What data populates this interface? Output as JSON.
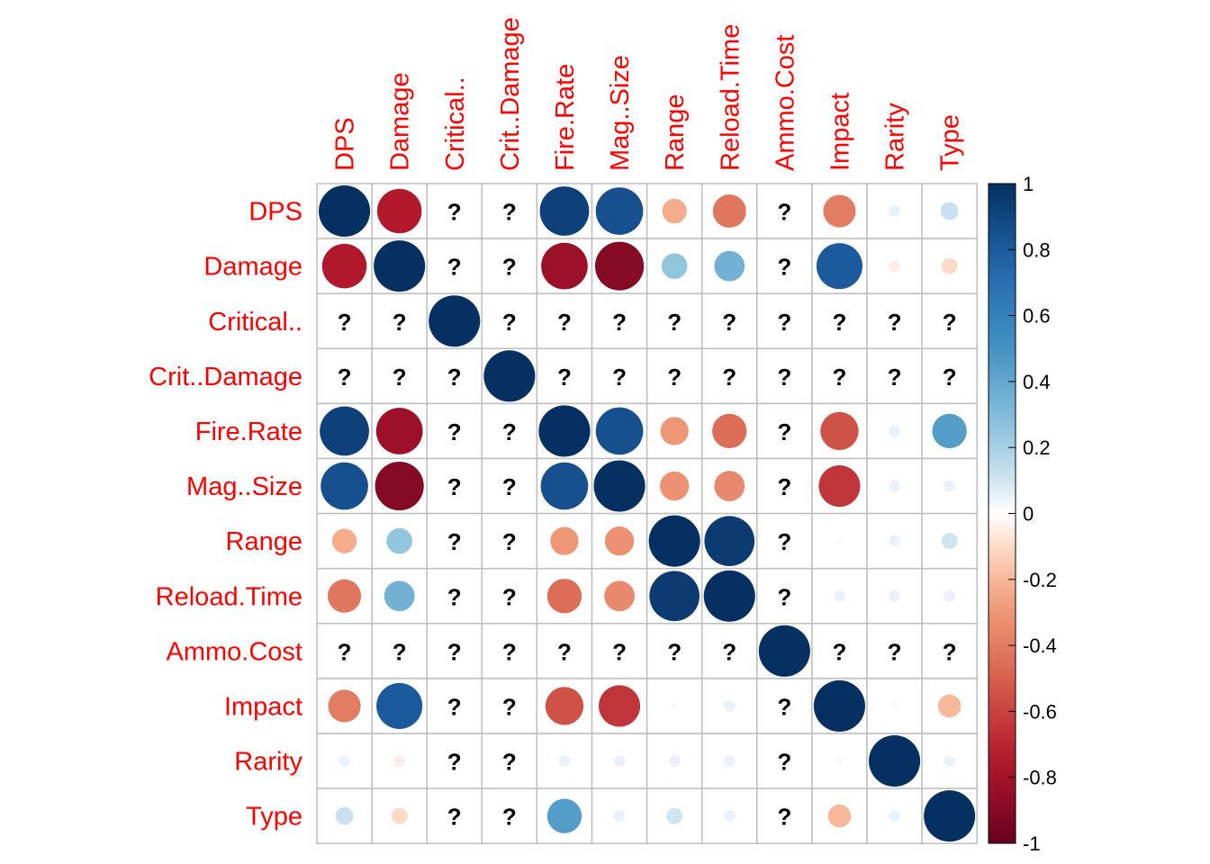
{
  "chart_data": {
    "type": "heatmap",
    "variables": [
      "DPS",
      "Damage",
      "Critical..",
      "Crit..Damage",
      "Fire.Rate",
      "Mag..Size",
      "Range",
      "Reload.Time",
      "Ammo.Cost",
      "Impact",
      "Rarity",
      "Type"
    ],
    "missing_symbol": "?",
    "matrix": [
      [
        1,
        -0.75,
        null,
        null,
        0.92,
        0.85,
        -0.23,
        -0.42,
        null,
        -0.4,
        0.05,
        0.12
      ],
      [
        -0.75,
        1,
        null,
        null,
        -0.82,
        -0.9,
        0.25,
        0.35,
        null,
        0.8,
        -0.05,
        -0.1
      ],
      [
        null,
        null,
        1,
        null,
        null,
        null,
        null,
        null,
        null,
        null,
        null,
        null
      ],
      [
        null,
        null,
        null,
        1,
        null,
        null,
        null,
        null,
        null,
        null,
        null,
        null
      ],
      [
        0.92,
        -0.82,
        null,
        null,
        1,
        0.85,
        -0.3,
        -0.45,
        null,
        -0.55,
        0.05,
        0.45
      ],
      [
        0.85,
        -0.9,
        null,
        null,
        0.85,
        1,
        -0.32,
        -0.35,
        null,
        -0.65,
        0.05,
        0.05
      ],
      [
        -0.23,
        0.25,
        null,
        null,
        -0.3,
        -0.32,
        1,
        0.95,
        null,
        0.02,
        0.05,
        0.1
      ],
      [
        -0.42,
        0.35,
        null,
        null,
        -0.45,
        -0.35,
        0.95,
        1,
        null,
        0.05,
        0.05,
        0.05
      ],
      [
        null,
        null,
        null,
        null,
        null,
        null,
        null,
        null,
        1,
        null,
        null,
        null
      ],
      [
        -0.4,
        0.8,
        null,
        null,
        -0.55,
        -0.65,
        0.02,
        0.05,
        null,
        1,
        -0.02,
        -0.2
      ],
      [
        0.05,
        -0.05,
        null,
        null,
        0.05,
        0.05,
        0.05,
        0.05,
        null,
        -0.02,
        1,
        0.05
      ],
      [
        0.12,
        -0.1,
        null,
        null,
        0.45,
        0.05,
        0.1,
        0.05,
        null,
        -0.2,
        0.05,
        1
      ]
    ],
    "colorbar": {
      "range": [
        -1,
        1
      ],
      "tick_values": [
        1,
        0.8,
        0.6,
        0.4,
        0.2,
        0,
        -0.2,
        -0.4,
        -0.6,
        -0.8,
        -1
      ],
      "tick_labels": [
        "1",
        "0.8",
        "0.6",
        "0.4",
        "0.2",
        "0",
        "-0.2",
        "-0.4",
        "-0.6",
        "-0.8",
        "-1"
      ]
    },
    "label_color": "#ff0000",
    "grid_color": "#bebebe",
    "palette": {
      "negative_end": "#67001f",
      "midpoint": "#ffffff",
      "positive_end": "#053061"
    }
  }
}
